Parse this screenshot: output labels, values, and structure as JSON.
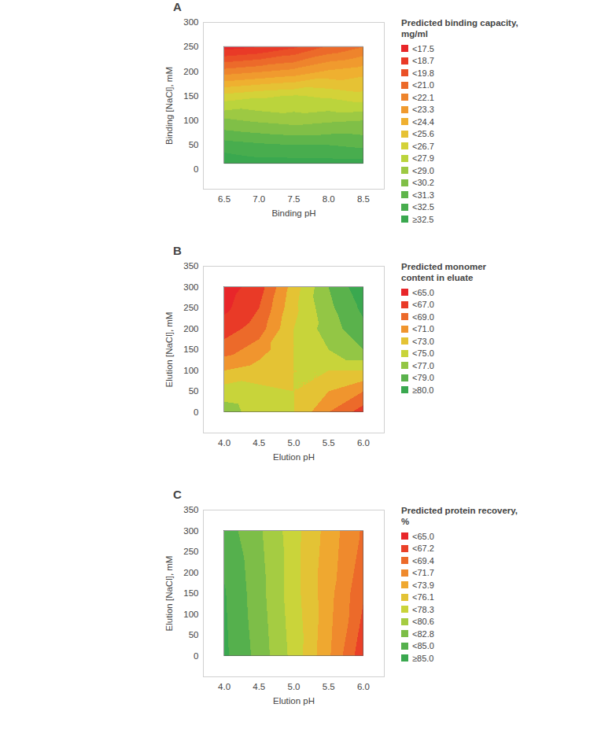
{
  "chart_data": [
    {
      "type": "contour",
      "title": "A",
      "xlabel": "Binding pH",
      "ylabel": "Binding [NaCl], mM",
      "x": [
        6.5,
        7.0,
        7.5,
        8.0,
        8.5
      ],
      "y": [
        12,
        50,
        100,
        150,
        200,
        250
      ],
      "values": [
        [
          33.5,
          33.0,
          33.0,
          33.0,
          33.0
        ],
        [
          31.8,
          31.5,
          31.3,
          31.3,
          31.0
        ],
        [
          29.2,
          28.8,
          28.5,
          28.8,
          29.0
        ],
        [
          26.0,
          26.5,
          26.8,
          26.5,
          26.0
        ],
        [
          21.5,
          22.0,
          22.5,
          23.5,
          24.0
        ],
        [
          17.0,
          17.5,
          18.5,
          20.0,
          21.0
        ]
      ],
      "xlim": [
        6.2,
        8.8
      ],
      "ylim": [
        -40,
        300
      ],
      "xticks": [
        6.5,
        {
          "value": 7,
          "label": "7.0"
        },
        7.5,
        {
          "value": 8,
          "label": "8.0"
        },
        8.5
      ],
      "yticks": [
        0,
        50,
        100,
        150,
        200,
        250,
        300
      ],
      "color_bar": {
        "title": "Predicted binding capacity, mg/ml",
        "entries": [
          {
            "value": 17.5,
            "label": "<17.5",
            "color": "#e8262a"
          },
          {
            "value": 18.7,
            "label": "<18.7",
            "color": "#e93a27"
          },
          {
            "value": 19.8,
            "label": "<19.8",
            "color": "#ea5027"
          },
          {
            "value": 21.0,
            "label": "<21.0",
            "color": "#ec6a2a"
          },
          {
            "value": 22.1,
            "label": "<22.1",
            "color": "#ee842c"
          },
          {
            "value": 23.3,
            "label": "<23.3",
            "color": "#f09a2e"
          },
          {
            "value": 24.4,
            "label": "<24.4",
            "color": "#efb030"
          },
          {
            "value": 25.6,
            "label": "<25.6",
            "color": "#e6c234"
          },
          {
            "value": 26.7,
            "label": "<26.7",
            "color": "#d4d238"
          },
          {
            "value": 27.9,
            "label": "<27.9",
            "color": "#bbd43c"
          },
          {
            "value": 29.0,
            "label": "<29.0",
            "color": "#9dc943"
          },
          {
            "value": 30.2,
            "label": "<30.2",
            "color": "#80bf47"
          },
          {
            "value": 31.3,
            "label": "<31.3",
            "color": "#5fb54b"
          },
          {
            "value": 32.5,
            "label": "<32.5",
            "color": "#48ad4e"
          },
          {
            "value": 32.5,
            "label": "≥32.5",
            "color": "#3aa84f"
          }
        ]
      }
    },
    {
      "type": "contour",
      "title": "B",
      "xlabel": "Elution pH",
      "ylabel": "Elution [NaCl], mM",
      "x": [
        4.0,
        4.5,
        5.0,
        5.5,
        6.0
      ],
      "y": [
        0,
        50,
        100,
        150,
        200,
        250,
        300
      ],
      "values": [
        [
          76.0,
          74.0,
          73.0,
          69.0,
          66.0
        ],
        [
          74.0,
          73.5,
          73.0,
          71.0,
          69.0
        ],
        [
          71.0,
          72.0,
          73.0,
          73.0,
          73.0
        ],
        [
          68.0,
          70.0,
          73.0,
          75.0,
          77.0
        ],
        [
          66.0,
          68.0,
          73.0,
          76.0,
          78.5
        ],
        [
          64.5,
          67.0,
          72.5,
          76.5,
          79.5
        ],
        [
          64.0,
          66.0,
          72.0,
          77.0,
          80.5
        ]
      ],
      "xlim": [
        3.7,
        6.3
      ],
      "ylim": [
        -50,
        350
      ],
      "xticks": [
        {
          "value": 4,
          "label": "4.0"
        },
        4.5,
        {
          "value": 5,
          "label": "5.0"
        },
        5.5,
        {
          "value": 6,
          "label": "6.0"
        }
      ],
      "yticks": [
        0,
        50,
        100,
        150,
        200,
        250,
        300,
        350
      ],
      "color_bar": {
        "title": "Predicted monomer content in eluate",
        "entries": [
          {
            "value": 65.0,
            "label": "<65.0",
            "color": "#e8262a"
          },
          {
            "value": 67.0,
            "label": "<67.0",
            "color": "#e93a27"
          },
          {
            "value": 69.0,
            "label": "<69.0",
            "color": "#ec6a2a"
          },
          {
            "value": 71.0,
            "label": "<71.0",
            "color": "#f0952e"
          },
          {
            "value": 73.0,
            "label": "<73.0",
            "color": "#e4c334"
          },
          {
            "value": 75.0,
            "label": "<75.0",
            "color": "#c8d43a"
          },
          {
            "value": 77.0,
            "label": "<77.0",
            "color": "#93c645"
          },
          {
            "value": 79.0,
            "label": "<79.0",
            "color": "#5ab24c"
          },
          {
            "value": 80.0,
            "label": "≥80.0",
            "color": "#3aa84f"
          }
        ]
      }
    },
    {
      "type": "contour",
      "title": "C",
      "xlabel": "Elution pH",
      "ylabel": "Elution [NaCl], mM",
      "x": [
        4.0,
        4.5,
        5.0,
        5.5,
        6.0
      ],
      "y": [
        0,
        150,
        300
      ],
      "values": [
        [
          85.5,
          82.0,
          77.5,
          72.0,
          65.5
        ],
        [
          85.2,
          81.5,
          77.0,
          72.5,
          67.5
        ],
        [
          84.0,
          81.0,
          77.0,
          73.0,
          69.0
        ]
      ],
      "xlim": [
        3.7,
        6.3
      ],
      "ylim": [
        -50,
        350
      ],
      "xticks": [
        {
          "value": 4,
          "label": "4.0"
        },
        4.5,
        {
          "value": 5,
          "label": "5.0"
        },
        5.5,
        {
          "value": 6,
          "label": "6.0"
        }
      ],
      "yticks": [
        0,
        50,
        100,
        150,
        200,
        250,
        300,
        350
      ],
      "color_bar": {
        "title": "Predicted protein recovery, %",
        "entries": [
          {
            "value": 65.0,
            "label": "<65.0",
            "color": "#e8262a"
          },
          {
            "value": 67.2,
            "label": "<67.2",
            "color": "#ea4028"
          },
          {
            "value": 69.4,
            "label": "<69.4",
            "color": "#ec6a2a"
          },
          {
            "value": 71.7,
            "label": "<71.7",
            "color": "#ef8a2d"
          },
          {
            "value": 73.9,
            "label": "<73.9",
            "color": "#efa830"
          },
          {
            "value": 76.1,
            "label": "<76.1",
            "color": "#e3c335"
          },
          {
            "value": 78.3,
            "label": "<78.3",
            "color": "#cad43a"
          },
          {
            "value": 80.6,
            "label": "<80.6",
            "color": "#a5cc42"
          },
          {
            "value": 82.8,
            "label": "<82.8",
            "color": "#7dbe48"
          },
          {
            "value": 85.0,
            "label": "<85.0",
            "color": "#55b04d"
          },
          {
            "value": 85.0,
            "label": "≥85.0",
            "color": "#3aa84f"
          }
        ]
      }
    }
  ]
}
